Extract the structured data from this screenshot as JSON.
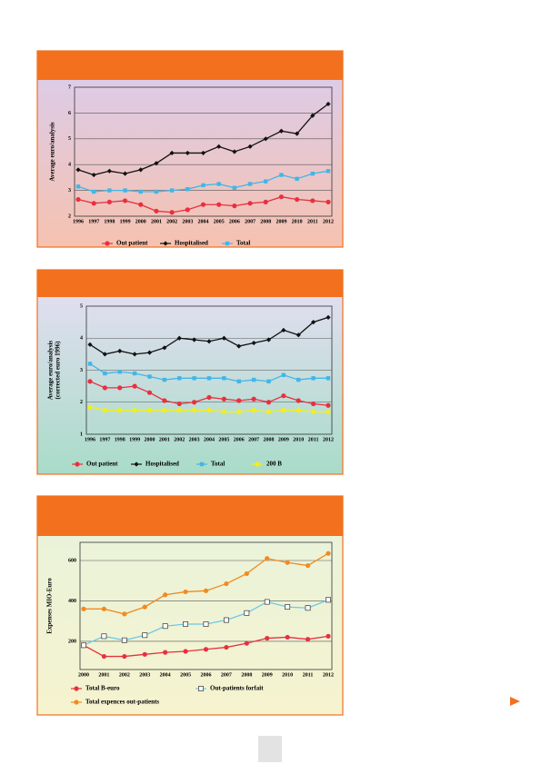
{
  "chart_data": [
    {
      "type": "line",
      "ylabel": [
        "Average euro/analysis"
      ],
      "categories": [
        "1996",
        "1997",
        "1998",
        "1999",
        "2000",
        "2001",
        "2002",
        "2003",
        "2004",
        "2005",
        "2006",
        "2007",
        "2008",
        "2009",
        "2010",
        "2011",
        "2012"
      ],
      "ylim": [
        2,
        7
      ],
      "yticks": [
        2,
        3,
        4,
        5,
        6,
        7
      ],
      "grid": true,
      "legend": "bottom",
      "series": [
        {
          "name": "Out patient",
          "color": "#e8303f",
          "marker": "circle",
          "values": [
            2.65,
            2.5,
            2.55,
            2.6,
            2.45,
            2.2,
            2.15,
            2.25,
            2.45,
            2.45,
            2.4,
            2.5,
            2.55,
            2.75,
            2.65,
            2.6,
            2.55
          ]
        },
        {
          "name": "Hospitalised",
          "color": "#111111",
          "marker": "diamond",
          "values": [
            3.8,
            3.6,
            3.75,
            3.65,
            3.8,
            4.05,
            4.45,
            4.45,
            4.45,
            4.7,
            4.5,
            4.7,
            5.0,
            5.3,
            5.2,
            5.9,
            6.35
          ]
        },
        {
          "name": "Total",
          "color": "#41b6e6",
          "marker": "square",
          "values": [
            3.15,
            2.95,
            3.0,
            3.0,
            2.95,
            2.95,
            3.0,
            3.05,
            3.2,
            3.25,
            3.1,
            3.25,
            3.35,
            3.6,
            3.45,
            3.65,
            3.75
          ]
        }
      ]
    },
    {
      "type": "line",
      "ylabel": [
        "Average euro/analysis",
        "(corrected euro 1996)"
      ],
      "categories": [
        "1996",
        "1997",
        "1998",
        "1999",
        "2000",
        "2001",
        "2002",
        "2003",
        "2004",
        "2005",
        "2006",
        "2007",
        "2008",
        "2009",
        "2010",
        "2011",
        "2012"
      ],
      "ylim": [
        1,
        5
      ],
      "yticks": [
        1,
        2,
        3,
        4,
        5
      ],
      "grid": true,
      "legend": "bottom",
      "series": [
        {
          "name": "Out patient",
          "color": "#e8303f",
          "marker": "circle",
          "values": [
            2.65,
            2.45,
            2.45,
            2.5,
            2.3,
            2.05,
            1.95,
            2.0,
            2.15,
            2.1,
            2.05,
            2.1,
            2.0,
            2.2,
            2.05,
            1.95,
            1.9
          ]
        },
        {
          "name": "Hospitalised",
          "color": "#111111",
          "marker": "diamond",
          "values": [
            3.8,
            3.5,
            3.6,
            3.5,
            3.55,
            3.7,
            4.0,
            3.95,
            3.9,
            4.0,
            3.75,
            3.85,
            3.95,
            4.25,
            4.1,
            4.5,
            4.65
          ]
        },
        {
          "name": "Total",
          "color": "#41b6e6",
          "marker": "square",
          "values": [
            3.2,
            2.9,
            2.95,
            2.9,
            2.8,
            2.7,
            2.75,
            2.75,
            2.75,
            2.75,
            2.65,
            2.7,
            2.65,
            2.85,
            2.7,
            2.75,
            2.75
          ]
        },
        {
          "name": "200 B",
          "color": "#f2ef1a",
          "marker": "circle",
          "values": [
            1.85,
            1.75,
            1.75,
            1.75,
            1.75,
            1.75,
            1.75,
            1.75,
            1.75,
            1.7,
            1.7,
            1.75,
            1.7,
            1.75,
            1.75,
            1.7,
            1.7
          ]
        }
      ]
    },
    {
      "type": "line",
      "ylabel": [
        "Expenses MIO-Euro"
      ],
      "categories": [
        "2000",
        "2001",
        "2002",
        "2003",
        "2004",
        "2005",
        "2006",
        "2007",
        "2008",
        "2009",
        "2010",
        "2011",
        "2012"
      ],
      "ylim": [
        60,
        690
      ],
      "yticks": [
        200,
        400,
        600
      ],
      "grid": true,
      "legend": "bottom",
      "series": [
        {
          "name": "Total B-euro",
          "color": "#e8303f",
          "marker": "circle",
          "values": [
            180,
            125,
            125,
            135,
            145,
            150,
            160,
            170,
            190,
            215,
            220,
            210,
            225
          ]
        },
        {
          "name": "Out-patients forfait",
          "color": "#6ec8ea",
          "marker": "open-square",
          "values": [
            180,
            225,
            205,
            230,
            275,
            285,
            285,
            305,
            340,
            395,
            370,
            365,
            405
          ]
        },
        {
          "name": "Total expences out-patients",
          "color": "#f28a1e",
          "marker": "circle",
          "values": [
            360,
            360,
            335,
            370,
            430,
            445,
            450,
            485,
            535,
            610,
            590,
            575,
            635
          ]
        }
      ]
    }
  ]
}
